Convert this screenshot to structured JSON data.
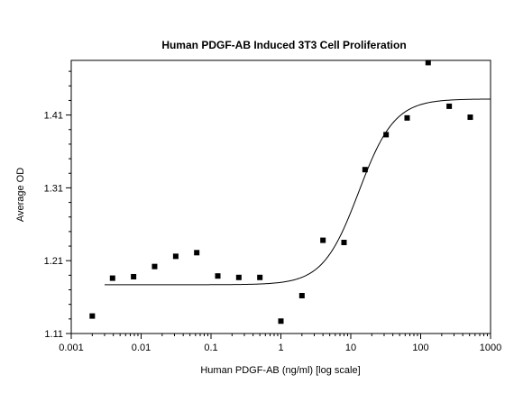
{
  "chart_data": {
    "type": "scatter",
    "title": "Human PDGF-AB Induced 3T3 Cell Proliferation",
    "xlabel": "Human PDGF-AB (ng/ml) [log scale]",
    "ylabel": "Average OD",
    "x_scale": "log",
    "xlim": [
      0.001,
      1000
    ],
    "ylim": [
      1.11,
      1.485
    ],
    "x_ticks": [
      {
        "value": 0.001,
        "label": "0.001"
      },
      {
        "value": 0.01,
        "label": "0.01"
      },
      {
        "value": 0.1,
        "label": "0.1"
      },
      {
        "value": 1,
        "label": "1"
      },
      {
        "value": 10,
        "label": "10"
      },
      {
        "value": 100,
        "label": "100"
      },
      {
        "value": 1000,
        "label": "1000"
      }
    ],
    "y_ticks": [
      {
        "value": 1.11,
        "label": "1.11"
      },
      {
        "value": 1.21,
        "label": "1.21"
      },
      {
        "value": 1.31,
        "label": "1.31"
      },
      {
        "value": 1.41,
        "label": "1.41"
      }
    ],
    "grid": false,
    "series": [
      {
        "marker": "square",
        "color": "#000000",
        "x": [
          0.002,
          0.0039,
          0.0078,
          0.0156,
          0.0313,
          0.0625,
          0.125,
          0.25,
          0.5,
          1,
          2,
          4,
          8,
          16,
          32,
          64,
          128,
          256,
          512
        ],
        "y": [
          1.134,
          1.186,
          1.188,
          1.202,
          1.216,
          1.221,
          1.189,
          1.187,
          1.187,
          1.127,
          1.162,
          1.238,
          1.235,
          1.335,
          1.383,
          1.406,
          1.482,
          1.422,
          1.407
        ]
      }
    ],
    "fit_curve": {
      "type": "4-parameter logistic",
      "color": "#000000",
      "bottom": 1.177,
      "top": 1.432,
      "ec50": 13,
      "hill": 1.7
    }
  }
}
